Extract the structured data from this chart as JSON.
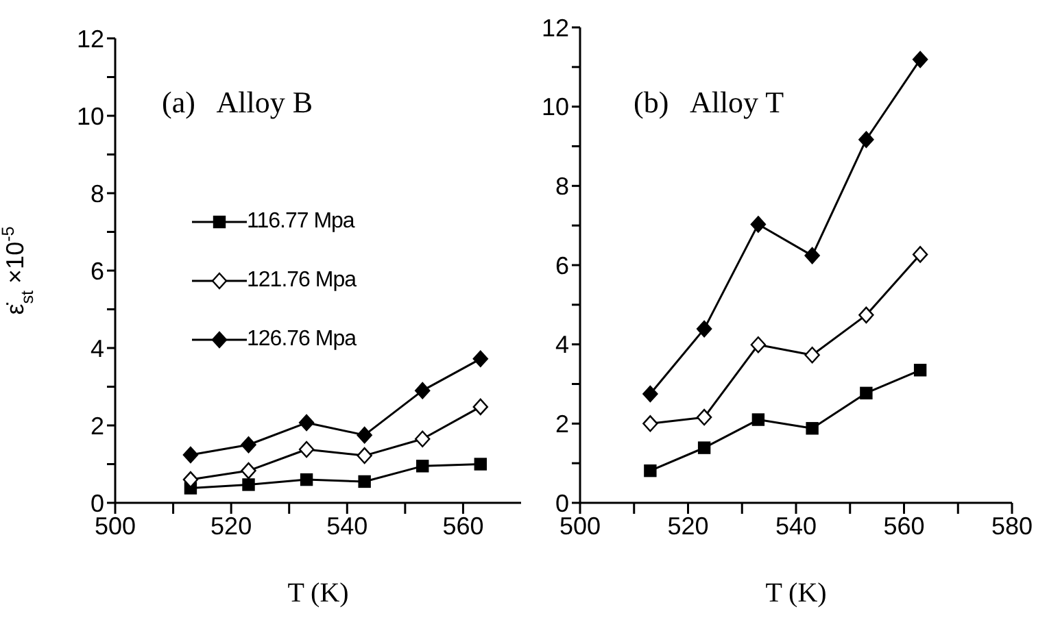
{
  "chart_data": [
    {
      "type": "line",
      "annotations": [
        "(a)   Alloy B"
      ],
      "xlabel": "T (K)",
      "ylabel": "ε̇$_{st}$ ×10$^{-5}$",
      "x": [
        513,
        523,
        533,
        543,
        553,
        563
      ],
      "xlim": [
        500,
        570
      ],
      "xticks": [
        500,
        {
          "value": 510,
          "label": null
        },
        520,
        {
          "value": 530,
          "label": null
        },
        540,
        {
          "value": 550,
          "label": null
        },
        560
      ],
      "ylim": [
        0,
        12
      ],
      "yticks": [
        0,
        {
          "value": 1,
          "label": null
        },
        2,
        {
          "value": 3,
          "label": null
        },
        4,
        {
          "value": 5,
          "label": null
        },
        6,
        {
          "value": 7,
          "label": null
        },
        8,
        {
          "value": 9,
          "label": null
        },
        10,
        {
          "value": 11,
          "label": null
        },
        12
      ],
      "legend": "left",
      "grid": false,
      "series": [
        {
          "name": "116.77 Mpa",
          "color": "#000000",
          "marker": "square",
          "values": [
            0.38,
            0.47,
            0.6,
            0.55,
            0.95,
            1.0
          ]
        },
        {
          "name": "121.76 Mpa",
          "color": "#000000",
          "marker": "diamond",
          "values": [
            0.6,
            0.83,
            1.38,
            1.22,
            1.65,
            2.48
          ]
        },
        {
          "name": "126.76 Mpa",
          "color": "#000000",
          "marker": "diamond",
          "values": [
            1.24,
            1.5,
            2.07,
            1.75,
            2.9,
            3.72
          ]
        }
      ]
    },
    {
      "type": "line",
      "annotations": [
        "(b)   Alloy T"
      ],
      "xlabel": "T (K)",
      "x": [
        513,
        523,
        533,
        543,
        553,
        563
      ],
      "xlim": [
        500,
        580
      ],
      "xticks": [
        500,
        {
          "value": 510,
          "label": null
        },
        520,
        {
          "value": 530,
          "label": null
        },
        540,
        {
          "value": 550,
          "label": null
        },
        560,
        {
          "value": 570,
          "label": null
        },
        580
      ],
      "ylim": [
        0,
        12
      ],
      "yticks": [
        0,
        {
          "value": 1,
          "label": null
        },
        2,
        {
          "value": 3,
          "label": null
        },
        4,
        {
          "value": 5,
          "label": null
        },
        6,
        {
          "value": 7,
          "label": null
        },
        8,
        {
          "value": 9,
          "label": null
        },
        10,
        {
          "value": 11,
          "label": null
        },
        12
      ],
      "grid": false,
      "series": [
        {
          "color": "#000000",
          "marker": "square",
          "values": [
            0.81,
            1.39,
            2.1,
            1.88,
            2.77,
            3.35
          ]
        },
        {
          "color": "#000000",
          "marker": "diamond",
          "values": [
            2.0,
            2.16,
            3.99,
            3.73,
            4.74,
            6.27
          ]
        },
        {
          "color": "#000000",
          "marker": "diamond",
          "values": [
            2.75,
            4.39,
            7.03,
            6.24,
            9.17,
            11.19
          ]
        }
      ]
    }
  ]
}
